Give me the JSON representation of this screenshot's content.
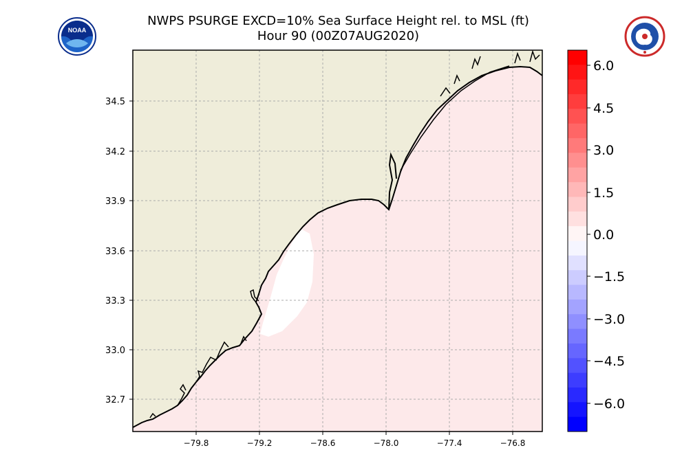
{
  "title": {
    "line1": "NWPS PSURGE EXCD=10% Sea Surface Height rel. to MSL (ft)",
    "line2": "Hour 90 (00Z07AUG2020)"
  },
  "logos": {
    "left": {
      "name": "noaa-logo",
      "text": "NOAA"
    },
    "right": {
      "name": "nws-logo"
    }
  },
  "map": {
    "y_ticks": [
      "34.5",
      "34.2",
      "33.9",
      "33.6",
      "33.3",
      "33.0",
      "32.7"
    ],
    "x_ticks": [
      "−79.8",
      "−79.2",
      "−78.6",
      "−78.0",
      "−77.4",
      "−76.8"
    ],
    "lat_range": [
      32.5,
      34.8
    ],
    "lon_range": [
      -80.4,
      -76.5
    ],
    "colors": {
      "land": "#efedda",
      "ocean": "#fde9ea",
      "near_zero": "#ffffff",
      "coast": "#000000",
      "grid": "#aaaaaa"
    }
  },
  "colorbar": {
    "ticks": [
      "6.0",
      "4.5",
      "3.0",
      "1.5",
      "0.0",
      "−1.5",
      "−3.0",
      "−4.5",
      "−6.0"
    ],
    "range": [
      -6.5,
      6.5
    ]
  }
}
